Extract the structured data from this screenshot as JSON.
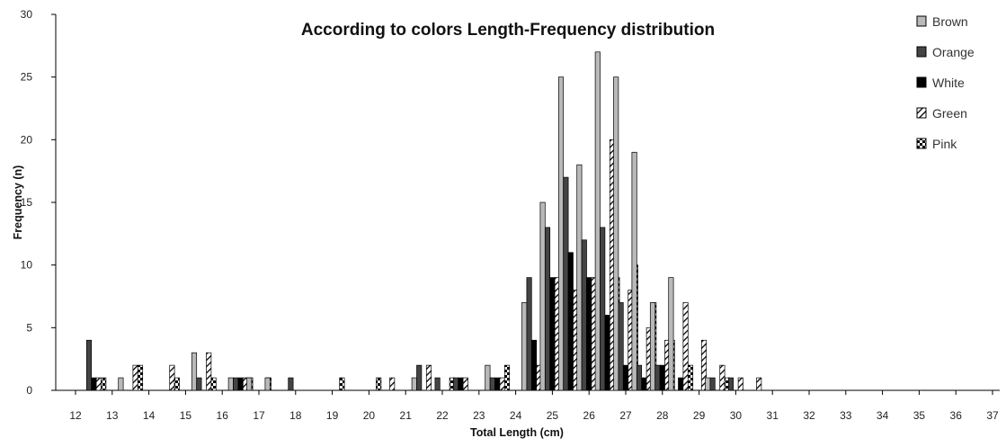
{
  "chart_data": {
    "type": "bar",
    "title": "According to colors Length-Frequency distribution",
    "xlabel": "Total Length (cm)",
    "ylabel": "Frequency (n)",
    "ylim": [
      0,
      30
    ],
    "yticks": [
      0,
      5,
      10,
      15,
      20,
      25,
      30
    ],
    "xticks": [
      "12",
      "13",
      "14",
      "15",
      "16",
      "17",
      "18",
      "19",
      "20",
      "21",
      "22",
      "23",
      "24",
      "25",
      "26",
      "27",
      "28",
      "29",
      "30",
      "31",
      "32",
      "33",
      "34",
      "35",
      "36",
      "37"
    ],
    "grid": false,
    "legend_position": "top-right",
    "categories": [
      "12.5",
      "13",
      "13.5",
      "14",
      "14.5",
      "15",
      "15.5",
      "16",
      "16.5",
      "17",
      "17.5",
      "18",
      "18.5",
      "19",
      "19.5",
      "20",
      "20.5",
      "21",
      "21.5",
      "22",
      "22.5",
      "23",
      "23.5",
      "24",
      "24.5",
      "25",
      "25.5",
      "26",
      "26.5",
      "27",
      "27.5",
      "28",
      "28.5",
      "29",
      "29.5",
      "30",
      "30.5",
      "31",
      "31.5",
      "32",
      "32.5",
      "33",
      "33.5",
      "34",
      "34.5",
      "35",
      "35.5",
      "36",
      "36.5",
      "37"
    ],
    "series": [
      {
        "name": "Brown",
        "fill": "#b9b9b9",
        "pattern": "solid",
        "values": [
          0,
          0,
          1,
          0,
          0,
          0,
          3,
          0,
          1,
          1,
          1,
          0,
          0,
          0,
          0,
          0,
          0,
          0,
          1,
          0,
          0,
          0,
          2,
          0,
          7,
          15,
          25,
          18,
          27,
          25,
          19,
          7,
          9,
          0,
          1,
          0,
          0,
          0,
          0,
          0,
          0,
          0,
          0,
          0,
          0,
          0,
          0,
          0,
          0,
          0
        ]
      },
      {
        "name": "Orange",
        "fill": "#444444",
        "pattern": "solid",
        "values": [
          4,
          0,
          0,
          0,
          0,
          0,
          1,
          0,
          1,
          0,
          0,
          1,
          0,
          0,
          0,
          0,
          0,
          0,
          2,
          1,
          1,
          0,
          1,
          0,
          9,
          13,
          17,
          12,
          13,
          7,
          2,
          2,
          0,
          0,
          1,
          1,
          0,
          0,
          0,
          0,
          0,
          0,
          0,
          0,
          0,
          0,
          0,
          0,
          0,
          0
        ]
      },
      {
        "name": "White",
        "fill": "#000000",
        "pattern": "solid",
        "values": [
          1,
          0,
          0,
          0,
          0,
          0,
          0,
          0,
          1,
          0,
          0,
          0,
          0,
          0,
          0,
          0,
          0,
          0,
          0,
          0,
          1,
          0,
          1,
          0,
          4,
          9,
          11,
          9,
          6,
          2,
          1,
          2,
          1,
          0,
          0,
          0,
          0,
          0,
          0,
          0,
          0,
          0,
          0,
          0,
          0,
          0,
          0,
          0,
          0,
          0
        ]
      },
      {
        "name": "Green",
        "fill": "#000000",
        "pattern": "diag",
        "values": [
          1,
          0,
          2,
          0,
          2,
          0,
          3,
          0,
          1,
          0,
          0,
          0,
          0,
          0,
          0,
          0,
          1,
          0,
          2,
          0,
          1,
          0,
          1,
          0,
          2,
          9,
          8,
          9,
          20,
          8,
          5,
          4,
          7,
          4,
          2,
          1,
          1,
          0,
          0,
          0,
          0,
          0,
          0,
          0,
          0,
          0,
          0,
          0,
          0,
          0
        ]
      },
      {
        "name": "Pink",
        "fill": "#000000",
        "pattern": "check",
        "values": [
          1,
          0,
          2,
          0,
          1,
          0,
          1,
          0,
          1,
          1,
          0,
          0,
          0,
          1,
          0,
          1,
          0,
          0,
          0,
          1,
          0,
          1,
          2,
          0,
          6,
          10,
          11,
          10,
          9,
          10,
          7,
          4,
          2,
          0,
          1,
          0,
          0,
          0,
          0,
          0,
          0,
          0,
          0,
          0,
          0,
          0,
          0,
          0,
          0,
          0
        ]
      }
    ]
  }
}
